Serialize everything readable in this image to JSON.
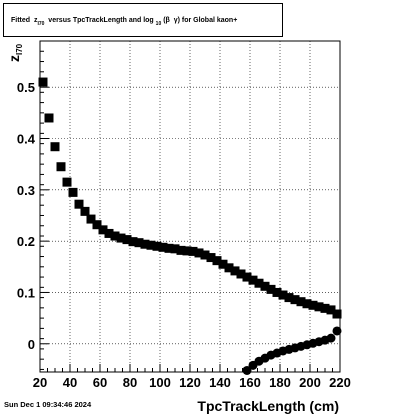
{
  "title": {
    "prefix": "Fitted",
    "var": "z",
    "var_sub": "I70",
    "middle": "versus TpcTrackLength and log",
    "log_sub": "10",
    "suffix_open": "(β",
    "suffix_close": "γ) for Global kaon+"
  },
  "footer": {
    "timestamp": "Sun Dec  1 09:34:46 2024"
  },
  "chart_data": {
    "type": "scatter",
    "title": "Fitted z_I70 versus TpcTrackLength and log_10 (β γ) for Global kaon+",
    "xlabel": "TpcTrackLength (cm)",
    "ylabel": "z",
    "ylabel_sub": "I70",
    "xlim": [
      20,
      220
    ],
    "ylim": [
      -0.055,
      0.59
    ],
    "x_ticks": [
      20,
      40,
      60,
      80,
      100,
      120,
      140,
      160,
      180,
      200,
      220
    ],
    "y_ticks": [
      0,
      0.1,
      0.2,
      0.3,
      0.4,
      0.5
    ],
    "y_tick_labels": [
      "0",
      "0.1",
      "0.2",
      "0.3",
      "0.4",
      "0.5"
    ],
    "grid": true,
    "marker_color": "#000000",
    "series": [
      {
        "marker": "square",
        "points": [
          [
            22,
            0.51
          ],
          [
            26,
            0.44
          ],
          [
            30,
            0.384
          ],
          [
            34,
            0.345
          ],
          [
            38,
            0.315
          ],
          [
            42,
            0.295
          ],
          [
            46,
            0.272
          ],
          [
            50,
            0.258
          ],
          [
            54,
            0.243
          ],
          [
            58,
            0.232
          ],
          [
            62,
            0.222
          ],
          [
            66,
            0.215
          ],
          [
            70,
            0.21
          ],
          [
            74,
            0.206
          ],
          [
            78,
            0.203
          ],
          [
            82,
            0.199
          ],
          [
            86,
            0.197
          ],
          [
            90,
            0.194
          ],
          [
            94,
            0.192
          ],
          [
            98,
            0.19
          ],
          [
            102,
            0.188
          ],
          [
            106,
            0.186
          ],
          [
            110,
            0.185
          ],
          [
            114,
            0.182
          ],
          [
            118,
            0.181
          ],
          [
            122,
            0.18
          ],
          [
            126,
            0.177
          ],
          [
            130,
            0.173
          ],
          [
            134,
            0.168
          ],
          [
            138,
            0.162
          ],
          [
            142,
            0.155
          ],
          [
            146,
            0.148
          ],
          [
            150,
            0.142
          ],
          [
            154,
            0.136
          ],
          [
            158,
            0.13
          ],
          [
            162,
            0.124
          ],
          [
            166,
            0.118
          ],
          [
            170,
            0.112
          ],
          [
            174,
            0.106
          ],
          [
            178,
            0.1
          ],
          [
            182,
            0.095
          ],
          [
            186,
            0.09
          ],
          [
            190,
            0.086
          ],
          [
            194,
            0.082
          ],
          [
            198,
            0.078
          ],
          [
            202,
            0.075
          ],
          [
            206,
            0.072
          ],
          [
            210,
            0.069
          ],
          [
            214,
            0.066
          ],
          [
            218,
            0.058
          ]
        ]
      },
      {
        "marker": "circle",
        "points": [
          [
            158,
            -0.052
          ],
          [
            162,
            -0.042
          ],
          [
            166,
            -0.034
          ],
          [
            170,
            -0.028
          ],
          [
            174,
            -0.022
          ],
          [
            178,
            -0.018
          ],
          [
            182,
            -0.014
          ],
          [
            186,
            -0.011
          ],
          [
            190,
            -0.008
          ],
          [
            194,
            -0.005
          ],
          [
            198,
            -0.002
          ],
          [
            202,
            0.001
          ],
          [
            206,
            0.004
          ],
          [
            210,
            0.007
          ],
          [
            214,
            0.011
          ],
          [
            218,
            0.025
          ]
        ]
      }
    ]
  }
}
